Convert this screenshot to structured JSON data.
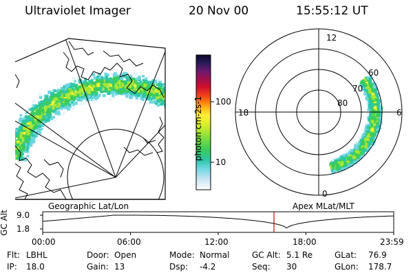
{
  "header": {
    "instrument": "Ultraviolet Imager",
    "date": "20 Nov 00",
    "time": "15:55:12 UT"
  },
  "colorbar": {
    "unit_label": "photon cm-2s-1",
    "ticks": [
      "100",
      "10"
    ]
  },
  "polar_plot": {
    "mlt_labels": [
      "12",
      "18",
      "6",
      "0"
    ],
    "lat_labels": [
      "60",
      "70",
      "80"
    ]
  },
  "orbit_panel": {
    "left_title": "Geographic Lat/Lon",
    "right_title": "Apex MLat/MLT",
    "y_axis_label": "GC Alt",
    "y_ticks": [
      "9.0",
      "1.8"
    ],
    "x_ticks": [
      "00:00",
      "06:00",
      "12:00",
      "18:00",
      "23:59"
    ],
    "current_marker_color": "#cc0000"
  },
  "status": {
    "row1": [
      {
        "key": "Flt:",
        "value": "LBHL"
      },
      {
        "key": "Door:",
        "value": "Open"
      },
      {
        "key": "Mode:",
        "value": "Normal"
      },
      {
        "key": "GC Alt:",
        "value": "5.1 Re"
      },
      {
        "key": "GLat:",
        "value": "76.9"
      }
    ],
    "row2": [
      {
        "key": "IP:",
        "value": "18.0"
      },
      {
        "key": "Gain:",
        "value": "13"
      },
      {
        "key": "Dsp:",
        "value": "-4.2"
      },
      {
        "key": "Seq:",
        "value": "30"
      },
      {
        "key": "GLon:",
        "value": "178.7"
      }
    ]
  }
}
